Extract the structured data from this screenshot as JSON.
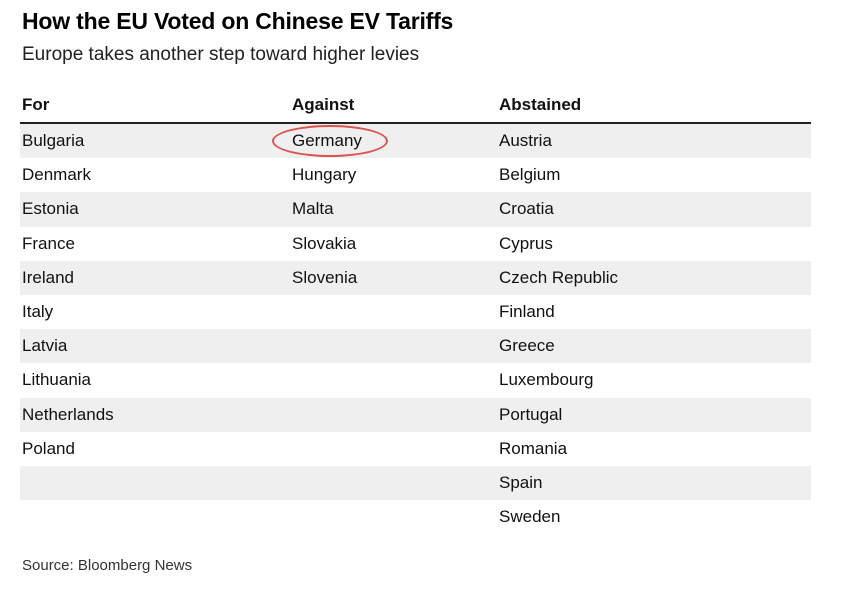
{
  "title": "How the EU Voted on Chinese EV Tariffs",
  "subtitle": "Europe takes another step toward higher levies",
  "source": "Source: Bloomberg News",
  "chart_data": {
    "type": "table",
    "columns": [
      "For",
      "Against",
      "Abstained"
    ],
    "rows": [
      [
        "Bulgaria",
        "Germany",
        "Austria"
      ],
      [
        "Denmark",
        "Hungary",
        "Belgium"
      ],
      [
        "Estonia",
        "Malta",
        "Croatia"
      ],
      [
        "France",
        "Slovakia",
        "Cyprus"
      ],
      [
        "Ireland",
        "Slovenia",
        "Czech Republic"
      ],
      [
        "Italy",
        "",
        "Finland"
      ],
      [
        "Latvia",
        "",
        "Greece"
      ],
      [
        "Lithuania",
        "",
        "Luxembourg"
      ],
      [
        "Netherlands",
        "",
        "Portugal"
      ],
      [
        "Poland",
        "",
        "Romania"
      ],
      [
        "",
        "",
        "Spain"
      ],
      [
        "",
        "",
        "Sweden"
      ]
    ],
    "highlighted_cell": "Germany",
    "highlight_color": "#d9534f",
    "row_shading": "alternating"
  }
}
